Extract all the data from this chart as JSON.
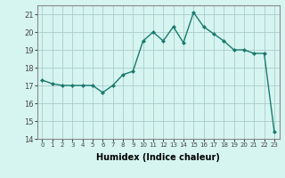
{
  "x": [
    0,
    1,
    2,
    3,
    4,
    5,
    6,
    7,
    8,
    9,
    10,
    11,
    12,
    13,
    14,
    15,
    16,
    17,
    18,
    19,
    20,
    21,
    22,
    23
  ],
  "y": [
    17.3,
    17.1,
    17.0,
    17.0,
    17.0,
    17.0,
    16.6,
    17.0,
    17.6,
    17.8,
    19.5,
    20.0,
    19.5,
    20.3,
    19.4,
    21.1,
    20.3,
    19.9,
    19.5,
    19.0,
    19.0,
    18.8,
    18.8,
    14.4
  ],
  "xlim": [
    -0.5,
    23.5
  ],
  "ylim": [
    14,
    21.5
  ],
  "yticks": [
    14,
    15,
    16,
    17,
    18,
    19,
    20,
    21
  ],
  "xticks": [
    0,
    1,
    2,
    3,
    4,
    5,
    6,
    7,
    8,
    9,
    10,
    11,
    12,
    13,
    14,
    15,
    16,
    17,
    18,
    19,
    20,
    21,
    22,
    23
  ],
  "xlabel": "Humidex (Indice chaleur)",
  "line_color": "#1a7a6e",
  "marker": "D",
  "marker_size": 2,
  "bg_color": "#d6f5f0",
  "grid_color": "#aacccc",
  "spine_color": "#888888",
  "tick_color": "#444444",
  "xlabel_fontsize": 7,
  "xlabel_fontweight": "bold",
  "xtick_fontsize": 5,
  "ytick_fontsize": 6,
  "linewidth": 1.0
}
